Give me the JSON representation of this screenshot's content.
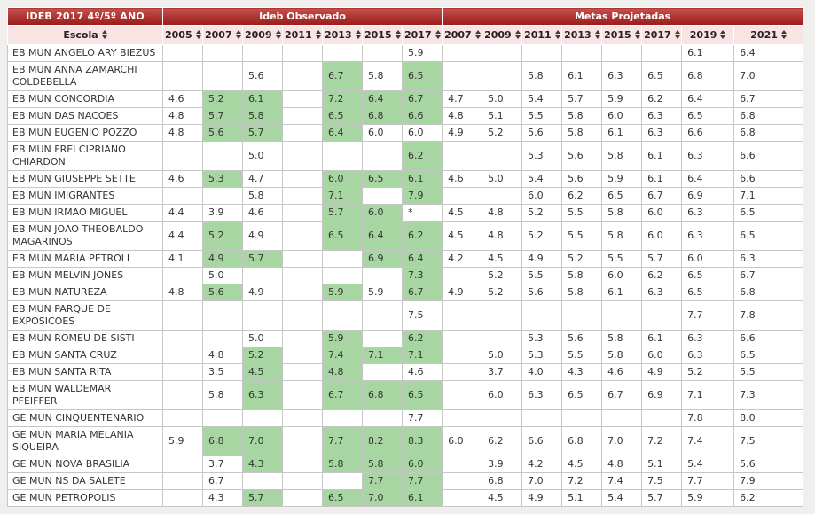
{
  "title": "IDEB 2017 4º/5º ANO",
  "groups": {
    "observado": "Ideb Observado",
    "metas": "Metas Projetadas"
  },
  "columns": {
    "escola": "Escola",
    "observado_years": [
      "2005",
      "2007",
      "2009",
      "2011",
      "2013",
      "2015",
      "2017"
    ],
    "metas_years": [
      "2007",
      "2009",
      "2011",
      "2013",
      "2015",
      "2017",
      "2019",
      "2021"
    ]
  },
  "colors": {
    "header_red_top": "#c5504b",
    "header_red_bottom": "#9b1c1b",
    "year_header_bg": "#f7e4e3",
    "highlight_green": "#a8d6a2",
    "grid": "#c6c6c6",
    "page_bg": "#f0efee"
  },
  "rows": [
    {
      "escola": "EB MUN ANGELO ARY BIEZUS",
      "obs": [
        "",
        "",
        "",
        "",
        "",
        "",
        "5.9"
      ],
      "obs_hl": [
        0,
        0,
        0,
        0,
        0,
        0,
        0
      ],
      "metas": [
        "",
        "",
        "",
        "",
        "",
        "",
        "6.1",
        "6.4"
      ]
    },
    {
      "escola": "EB MUN ANNA ZAMARCHI COLDEBELLA",
      "obs": [
        "",
        "",
        "5.6",
        "",
        "6.7",
        "5.8",
        "6.5"
      ],
      "obs_hl": [
        0,
        0,
        0,
        0,
        1,
        0,
        1
      ],
      "metas": [
        "",
        "",
        "5.8",
        "6.1",
        "6.3",
        "6.5",
        "6.8",
        "7.0"
      ]
    },
    {
      "escola": "EB MUN CONCORDIA",
      "obs": [
        "4.6",
        "5.2",
        "6.1",
        "",
        "7.2",
        "6.4",
        "6.7"
      ],
      "obs_hl": [
        0,
        1,
        1,
        0,
        1,
        1,
        1
      ],
      "metas": [
        "4.7",
        "5.0",
        "5.4",
        "5.7",
        "5.9",
        "6.2",
        "6.4",
        "6.7"
      ]
    },
    {
      "escola": "EB MUN DAS NACOES",
      "obs": [
        "4.8",
        "5.7",
        "5.8",
        "",
        "6.5",
        "6.8",
        "6.6"
      ],
      "obs_hl": [
        0,
        1,
        1,
        0,
        1,
        1,
        1
      ],
      "metas": [
        "4.8",
        "5.1",
        "5.5",
        "5.8",
        "6.0",
        "6.3",
        "6.5",
        "6.8"
      ]
    },
    {
      "escola": "EB MUN EUGENIO POZZO",
      "obs": [
        "4.8",
        "5.6",
        "5.7",
        "",
        "6.4",
        "6.0",
        "6.0"
      ],
      "obs_hl": [
        0,
        1,
        1,
        0,
        1,
        0,
        0
      ],
      "metas": [
        "4.9",
        "5.2",
        "5.6",
        "5.8",
        "6.1",
        "6.3",
        "6.6",
        "6.8"
      ]
    },
    {
      "escola": "EB MUN FREI CIPRIANO CHIARDON",
      "obs": [
        "",
        "",
        "5.0",
        "",
        "",
        "",
        "6.2"
      ],
      "obs_hl": [
        0,
        0,
        0,
        0,
        0,
        0,
        1
      ],
      "metas": [
        "",
        "",
        "5.3",
        "5.6",
        "5.8",
        "6.1",
        "6.3",
        "6.6"
      ]
    },
    {
      "escola": "EB MUN GIUSEPPE SETTE",
      "obs": [
        "4.6",
        "5.3",
        "4.7",
        "",
        "6.0",
        "6.5",
        "6.1"
      ],
      "obs_hl": [
        0,
        1,
        0,
        0,
        1,
        1,
        1
      ],
      "metas": [
        "4.6",
        "5.0",
        "5.4",
        "5.6",
        "5.9",
        "6.1",
        "6.4",
        "6.6"
      ]
    },
    {
      "escola": "EB MUN IMIGRANTES",
      "obs": [
        "",
        "",
        "5.8",
        "",
        "7.1",
        "",
        "7.9"
      ],
      "obs_hl": [
        0,
        0,
        0,
        0,
        1,
        0,
        1
      ],
      "metas": [
        "",
        "",
        "6.0",
        "6.2",
        "6.5",
        "6.7",
        "6.9",
        "7.1"
      ]
    },
    {
      "escola": "EB MUN IRMAO MIGUEL",
      "obs": [
        "4.4",
        "3.9",
        "4.6",
        "",
        "5.7",
        "6.0",
        "*"
      ],
      "obs_hl": [
        0,
        0,
        0,
        0,
        1,
        1,
        0
      ],
      "metas": [
        "4.5",
        "4.8",
        "5.2",
        "5.5",
        "5.8",
        "6.0",
        "6.3",
        "6.5"
      ]
    },
    {
      "escola": "EB MUN JOAO THEOBALDO MAGARINOS",
      "obs": [
        "4.4",
        "5.2",
        "4.9",
        "",
        "6.5",
        "6.4",
        "6.2"
      ],
      "obs_hl": [
        0,
        1,
        0,
        0,
        1,
        1,
        1
      ],
      "metas": [
        "4.5",
        "4.8",
        "5.2",
        "5.5",
        "5.8",
        "6.0",
        "6.3",
        "6.5"
      ]
    },
    {
      "escola": "EB MUN MARIA PETROLI",
      "obs": [
        "4.1",
        "4.9",
        "5.7",
        "",
        "",
        "6.9",
        "6.4"
      ],
      "obs_hl": [
        0,
        1,
        1,
        0,
        0,
        1,
        1
      ],
      "metas": [
        "4.2",
        "4.5",
        "4.9",
        "5.2",
        "5.5",
        "5.7",
        "6.0",
        "6.3"
      ]
    },
    {
      "escola": "EB MUN MELVIN JONES",
      "obs": [
        "",
        "5.0",
        "",
        "",
        "",
        "",
        "7.3"
      ],
      "obs_hl": [
        0,
        0,
        0,
        0,
        0,
        0,
        1
      ],
      "metas": [
        "",
        "5.2",
        "5.5",
        "5.8",
        "6.0",
        "6.2",
        "6.5",
        "6.7"
      ]
    },
    {
      "escola": "EB MUN NATUREZA",
      "obs": [
        "4.8",
        "5.6",
        "4.9",
        "",
        "5.9",
        "5.9",
        "6.7"
      ],
      "obs_hl": [
        0,
        1,
        0,
        0,
        1,
        0,
        1
      ],
      "metas": [
        "4.9",
        "5.2",
        "5.6",
        "5.8",
        "6.1",
        "6.3",
        "6.5",
        "6.8"
      ]
    },
    {
      "escola": "EB MUN PARQUE DE EXPOSICOES",
      "obs": [
        "",
        "",
        "",
        "",
        "",
        "",
        "7.5"
      ],
      "obs_hl": [
        0,
        0,
        0,
        0,
        0,
        0,
        0
      ],
      "metas": [
        "",
        "",
        "",
        "",
        "",
        "",
        "7.7",
        "7.8"
      ]
    },
    {
      "escola": "EB MUN ROMEU DE SISTI",
      "obs": [
        "",
        "",
        "5.0",
        "",
        "5.9",
        "",
        "6.2"
      ],
      "obs_hl": [
        0,
        0,
        0,
        0,
        1,
        0,
        1
      ],
      "metas": [
        "",
        "",
        "5.3",
        "5.6",
        "5.8",
        "6.1",
        "6.3",
        "6.6"
      ]
    },
    {
      "escola": "EB MUN SANTA CRUZ",
      "obs": [
        "",
        "4.8",
        "5.2",
        "",
        "7.4",
        "7.1",
        "7.1"
      ],
      "obs_hl": [
        0,
        0,
        1,
        0,
        1,
        1,
        1
      ],
      "metas": [
        "",
        "5.0",
        "5.3",
        "5.5",
        "5.8",
        "6.0",
        "6.3",
        "6.5"
      ]
    },
    {
      "escola": "EB MUN SANTA RITA",
      "obs": [
        "",
        "3.5",
        "4.5",
        "",
        "4.8",
        "",
        "4.6"
      ],
      "obs_hl": [
        0,
        0,
        1,
        0,
        1,
        0,
        0
      ],
      "metas": [
        "",
        "3.7",
        "4.0",
        "4.3",
        "4.6",
        "4.9",
        "5.2",
        "5.5"
      ]
    },
    {
      "escola": "EB MUN WALDEMAR PFEIFFER",
      "obs": [
        "",
        "5.8",
        "6.3",
        "",
        "6.7",
        "6.8",
        "6.5"
      ],
      "obs_hl": [
        0,
        0,
        1,
        0,
        1,
        1,
        1
      ],
      "metas": [
        "",
        "6.0",
        "6.3",
        "6.5",
        "6.7",
        "6.9",
        "7.1",
        "7.3"
      ]
    },
    {
      "escola": "GE MUN CINQUENTENARIO",
      "obs": [
        "",
        "",
        "",
        "",
        "",
        "",
        "7.7"
      ],
      "obs_hl": [
        0,
        0,
        0,
        0,
        0,
        0,
        0
      ],
      "metas": [
        "",
        "",
        "",
        "",
        "",
        "",
        "7.8",
        "8.0"
      ]
    },
    {
      "escola": "GE MUN MARIA MELANIA SIQUEIRA",
      "obs": [
        "5.9",
        "6.8",
        "7.0",
        "",
        "7.7",
        "8.2",
        "8.3"
      ],
      "obs_hl": [
        0,
        1,
        1,
        0,
        1,
        1,
        1
      ],
      "metas": [
        "6.0",
        "6.2",
        "6.6",
        "6.8",
        "7.0",
        "7.2",
        "7.4",
        "7.5"
      ]
    },
    {
      "escola": "GE MUN NOVA BRASILIA",
      "obs": [
        "",
        "3.7",
        "4.3",
        "",
        "5.8",
        "5.8",
        "6.0"
      ],
      "obs_hl": [
        0,
        0,
        1,
        0,
        1,
        1,
        1
      ],
      "metas": [
        "",
        "3.9",
        "4.2",
        "4.5",
        "4.8",
        "5.1",
        "5.4",
        "5.6"
      ]
    },
    {
      "escola": "GE MUN NS DA SALETE",
      "obs": [
        "",
        "6.7",
        "",
        "",
        "",
        "7.7",
        "7.7"
      ],
      "obs_hl": [
        0,
        0,
        0,
        0,
        0,
        1,
        1
      ],
      "metas": [
        "",
        "6.8",
        "7.0",
        "7.2",
        "7.4",
        "7.5",
        "7.7",
        "7.9"
      ]
    },
    {
      "escola": "GE MUN PETROPOLIS",
      "obs": [
        "",
        "4.3",
        "5.7",
        "",
        "6.5",
        "7.0",
        "6.1"
      ],
      "obs_hl": [
        0,
        0,
        1,
        0,
        1,
        1,
        1
      ],
      "metas": [
        "",
        "4.5",
        "4.9",
        "5.1",
        "5.4",
        "5.7",
        "5.9",
        "6.2"
      ]
    }
  ]
}
